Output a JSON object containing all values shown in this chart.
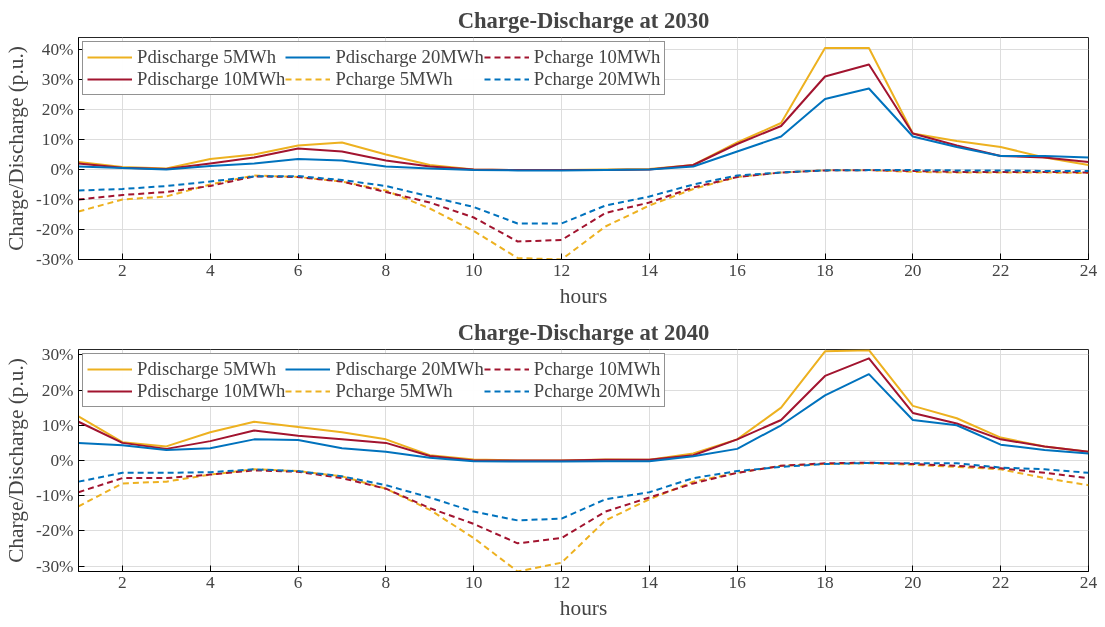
{
  "chart_data": [
    {
      "type": "line",
      "title": "Charge-Discharge at 2030",
      "xlabel": "hours",
      "ylabel": "Charge/Discharge (p.u.)",
      "x": [
        1,
        2,
        3,
        4,
        5,
        6,
        7,
        8,
        9,
        10,
        11,
        12,
        13,
        14,
        15,
        16,
        17,
        18,
        19,
        20,
        21,
        22,
        23,
        24
      ],
      "xlim": [
        1,
        24
      ],
      "xticks": [
        2,
        4,
        6,
        8,
        10,
        12,
        14,
        16,
        18,
        20,
        22,
        24
      ],
      "ylim": [
        -30,
        44
      ],
      "yticks": [
        {
          "value": -30,
          "label": "-30%"
        },
        {
          "value": -20,
          "label": "-20%"
        },
        {
          "value": -10,
          "label": "-10%"
        },
        {
          "value": 0,
          "label": "0%"
        },
        {
          "value": 10,
          "label": "10%"
        },
        {
          "value": 20,
          "label": "20%"
        },
        {
          "value": 30,
          "label": "30%"
        },
        {
          "value": 40,
          "label": "40%"
        }
      ],
      "grid": true,
      "legend": "top left",
      "marker": "none",
      "series": [
        {
          "name": "Pdischarge 5MWh",
          "color": "#edb120",
          "line_style": "solid",
          "values": [
            2.5,
            0.8,
            0.3,
            3.5,
            5,
            8,
            9,
            5,
            1.5,
            0,
            -0.2,
            -0.2,
            0,
            0.2,
            1.5,
            9,
            15.5,
            40.5,
            40.5,
            12,
            9.5,
            7.5,
            4,
            1.5
          ]
        },
        {
          "name": "Pdischarge 10MWh",
          "color": "#a2142f",
          "line_style": "solid",
          "values": [
            2,
            0.6,
            0.2,
            2,
            4,
            7,
            6,
            3,
            1,
            0,
            -0.2,
            -0.2,
            -0.2,
            0,
            1.5,
            8.5,
            14.5,
            31,
            35,
            12,
            8,
            4.5,
            4,
            2.5
          ]
        },
        {
          "name": "Pdischarge 20MWh",
          "color": "#0072bd",
          "line_style": "solid",
          "values": [
            1,
            0.5,
            0,
            1.2,
            2,
            3.5,
            3,
            1,
            0.3,
            -0.2,
            -0.3,
            -0.3,
            -0.2,
            0,
            1,
            6,
            11,
            23.5,
            27,
            11,
            7.5,
            4.5,
            4.5,
            4
          ]
        },
        {
          "name": "Pcharge 5MWh",
          "color": "#edb120",
          "line_style": "dashed",
          "values": [
            -14,
            -10,
            -9,
            -5,
            -2,
            -2.5,
            -4,
            -7,
            -13,
            -20.5,
            -29.5,
            -30,
            -19,
            -12,
            -6.5,
            -2.5,
            -1,
            -0.3,
            -0.2,
            -0.8,
            -1,
            -1,
            -1,
            -1.2
          ]
        },
        {
          "name": "Pcharge 10MWh",
          "color": "#a2142f",
          "line_style": "dashed",
          "values": [
            -10,
            -8.5,
            -7.5,
            -5.5,
            -2.3,
            -2.5,
            -4,
            -7.5,
            -11,
            -16,
            -24,
            -23.5,
            -14.5,
            -11,
            -6,
            -2.5,
            -1,
            -0.3,
            -0.2,
            -0.5,
            -0.8,
            -0.8,
            -0.8,
            -1
          ]
        },
        {
          "name": "Pcharge 20MWh",
          "color": "#0072bd",
          "line_style": "dashed",
          "values": [
            -7,
            -6.5,
            -5.5,
            -4,
            -2.3,
            -2.2,
            -3.5,
            -5.5,
            -9,
            -12.5,
            -18,
            -18,
            -12,
            -9,
            -5,
            -2,
            -1,
            -0.3,
            -0.2,
            -0.2,
            -0.3,
            -0.3,
            -0.5,
            -0.5
          ]
        }
      ]
    },
    {
      "type": "line",
      "title": "Charge-Discharge at 2040",
      "xlabel": "hours",
      "ylabel": "Charge/Discharge (p.u.)",
      "x": [
        1,
        2,
        3,
        4,
        5,
        6,
        7,
        8,
        9,
        10,
        11,
        12,
        13,
        14,
        15,
        16,
        17,
        18,
        19,
        20,
        21,
        22,
        23,
        24
      ],
      "xlim": [
        1,
        24
      ],
      "xticks": [
        2,
        4,
        6,
        8,
        10,
        12,
        14,
        16,
        18,
        20,
        22,
        24
      ],
      "ylim": [
        -31.5,
        31.5
      ],
      "yticks": [
        {
          "value": -30,
          "label": "-30%"
        },
        {
          "value": -20,
          "label": "-20%"
        },
        {
          "value": -10,
          "label": "-10%"
        },
        {
          "value": 0,
          "label": "0%"
        },
        {
          "value": 10,
          "label": "10%"
        },
        {
          "value": 20,
          "label": "20%"
        },
        {
          "value": 30,
          "label": "30%"
        }
      ],
      "grid": true,
      "legend": "top left",
      "marker": "none",
      "series": [
        {
          "name": "Pdischarge 5MWh",
          "color": "#edb120",
          "line_style": "solid",
          "values": [
            12.5,
            5.2,
            4,
            8,
            11,
            9.5,
            8,
            6,
            1.5,
            0.3,
            0,
            0,
            0.3,
            0.2,
            2,
            6,
            15,
            31,
            31.3,
            15.5,
            12,
            6.5,
            4,
            2.5
          ]
        },
        {
          "name": "Pdischarge 10MWh",
          "color": "#a2142f",
          "line_style": "solid",
          "values": [
            11,
            5,
            3.3,
            5.5,
            8.5,
            7,
            6,
            5,
            1.3,
            0,
            0,
            0,
            0.2,
            0.2,
            1.5,
            6,
            11.5,
            24,
            29,
            13.5,
            10.5,
            6,
            4,
            2.5
          ]
        },
        {
          "name": "Pdischarge 20MWh",
          "color": "#0072bd",
          "line_style": "solid",
          "values": [
            5,
            4.3,
            3,
            3.5,
            6,
            5.8,
            3.5,
            2.5,
            0.8,
            -0.2,
            -0.3,
            -0.3,
            -0.2,
            -0.2,
            1.2,
            3.3,
            10,
            18.5,
            24.5,
            11.5,
            10,
            4.5,
            3,
            2
          ]
        },
        {
          "name": "Pcharge 5MWh",
          "color": "#edb120",
          "line_style": "dashed",
          "values": [
            -13,
            -6.5,
            -6,
            -4,
            -2.5,
            -3,
            -4.5,
            -8,
            -14,
            -22,
            -31.5,
            -29,
            -17,
            -11,
            -6,
            -3.5,
            -1.5,
            -1,
            -0.8,
            -1.2,
            -1.8,
            -2.5,
            -5,
            -7
          ]
        },
        {
          "name": "Pcharge 10MWh",
          "color": "#a2142f",
          "line_style": "dashed",
          "values": [
            -9,
            -5,
            -5,
            -4,
            -2.8,
            -3.2,
            -5,
            -8,
            -13.5,
            -18,
            -23.5,
            -22,
            -14.5,
            -10.5,
            -6.5,
            -3.5,
            -1.5,
            -0.8,
            -0.6,
            -1,
            -1.5,
            -2.2,
            -3.5,
            -5
          ]
        },
        {
          "name": "Pcharge 20MWh",
          "color": "#0072bd",
          "line_style": "dashed",
          "values": [
            -6,
            -3.5,
            -3.5,
            -3.3,
            -2.5,
            -3,
            -4.5,
            -7,
            -10.5,
            -14.5,
            -17,
            -16.5,
            -11,
            -9,
            -5,
            -3,
            -1.8,
            -1,
            -0.7,
            -0.8,
            -0.8,
            -2,
            -2.5,
            -3.5
          ]
        }
      ]
    }
  ]
}
